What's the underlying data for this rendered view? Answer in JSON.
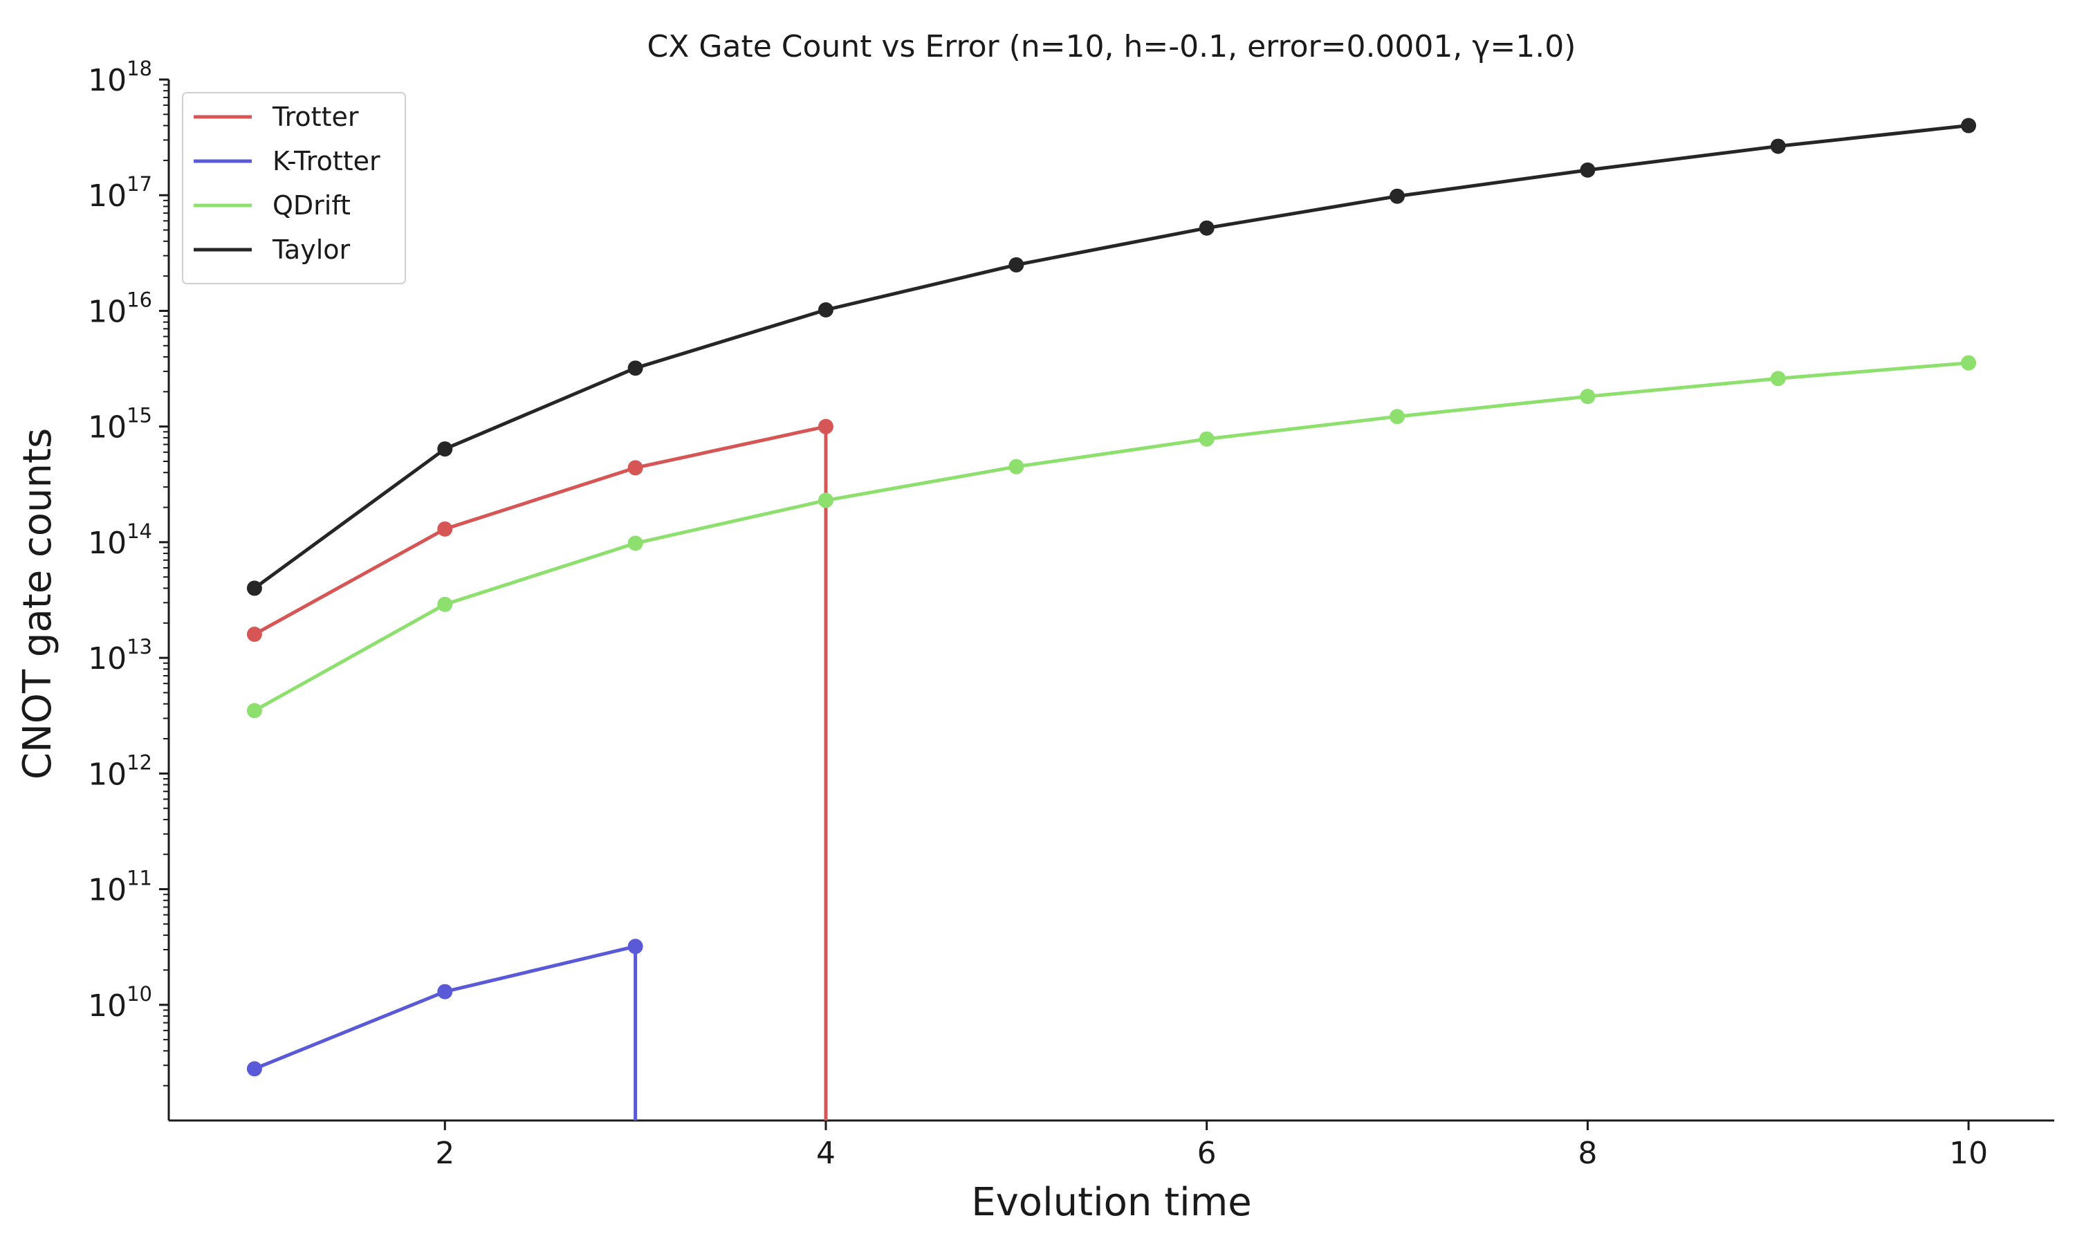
{
  "chart_data": {
    "type": "line",
    "title": "CX Gate Count vs Error (n=10, h=-0.1, error=0.0001, γ=1.0)",
    "xlabel": "Evolution time",
    "ylabel": "CNOT gate counts",
    "xlim": [
      0.55,
      10.45
    ],
    "ylim": [
      1000000000.0,
      1e+18
    ],
    "yscale": "log",
    "xticks": [
      2,
      4,
      6,
      8,
      10
    ],
    "yticks": [
      10000000000.0,
      100000000000.0,
      1000000000000.0,
      10000000000000.0,
      100000000000000.0,
      1000000000000000.0,
      1e+16,
      1e+17,
      1e+18
    ],
    "grid": false,
    "legend_position": "top-left",
    "series": [
      {
        "name": "Trotter",
        "color": "#d65656",
        "x": [
          1,
          2,
          3,
          4
        ],
        "y": [
          16000000000000.0,
          130000000000000.0,
          440000000000000.0,
          1000000000000000.0
        ],
        "drops_to_axis_at": 4
      },
      {
        "name": "K-Trotter",
        "color": "#5a5ad8",
        "x": [
          1,
          2,
          3
        ],
        "y": [
          2800000000.0,
          13000000000.0,
          32000000000.0
        ],
        "drops_to_axis_at": 3
      },
      {
        "name": "QDrift",
        "color": "#8ee06e",
        "x": [
          1,
          2,
          3,
          4,
          5,
          6,
          7,
          8,
          9,
          10
        ],
        "y": [
          3500000000000.0,
          29000000000000.0,
          98000000000000.0,
          230000000000000.0,
          450000000000000.0,
          780000000000000.0,
          1220000000000000.0,
          1820000000000000.0,
          2600000000000000.0,
          3550000000000000.0
        ]
      },
      {
        "name": "Taylor",
        "color": "#262626",
        "x": [
          1,
          2,
          3,
          4,
          5,
          6,
          7,
          8,
          9,
          10
        ],
        "y": [
          40000000000000.0,
          640000000000000.0,
          3200000000000000.0,
          1.02e+16,
          2.5e+16,
          5.2e+16,
          9.8e+16,
          1.65e+17,
          2.65e+17,
          4e+17
        ]
      }
    ]
  }
}
